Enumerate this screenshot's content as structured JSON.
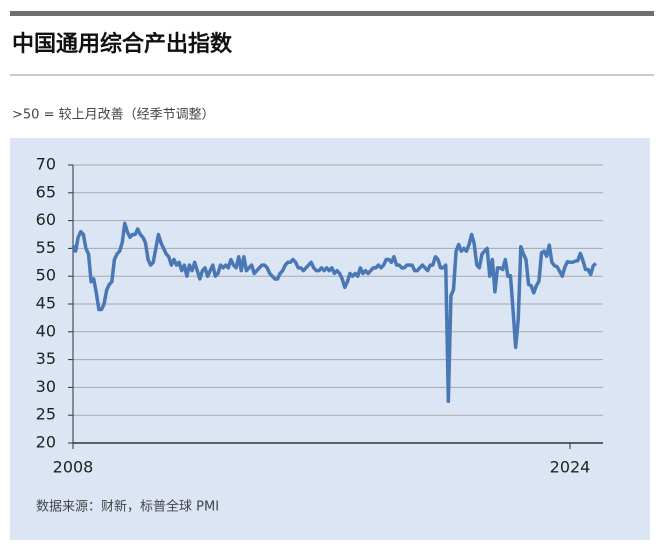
{
  "chart_data": {
    "type": "line",
    "title": "中国通用综合产出指数",
    "subtitle": ">50 = 较上月改善（经季节调整）",
    "source": "数据来源：财新，标普全球 PMI",
    "color": "#4a78b5",
    "ylim": [
      20,
      70
    ],
    "yticks": [
      20,
      25,
      30,
      35,
      40,
      45,
      50,
      55,
      60,
      65,
      70
    ],
    "grid": true,
    "categories": [
      "2008",
      null,
      null,
      null,
      null,
      null,
      null,
      null,
      null,
      null,
      null,
      null,
      null,
      null,
      null,
      null,
      null,
      null,
      null,
      null,
      null,
      null,
      null,
      null,
      null,
      null,
      null,
      null,
      null,
      null,
      null,
      null,
      null,
      null,
      null,
      null,
      null,
      null,
      null,
      null,
      null,
      null,
      null,
      null,
      null,
      null,
      null,
      null,
      null,
      null,
      null,
      null,
      null,
      null,
      null,
      null,
      null,
      null,
      null,
      null,
      null,
      null,
      null,
      null,
      null,
      null,
      null,
      null,
      null,
      null,
      null,
      null,
      null,
      null,
      null,
      null,
      null,
      null,
      null,
      null,
      null,
      null,
      null,
      null,
      null,
      null,
      null,
      null,
      null,
      null,
      null,
      null,
      null,
      null,
      null,
      null,
      null,
      null,
      null,
      null,
      null,
      null,
      null,
      null,
      null,
      null,
      null,
      null,
      null,
      null,
      null,
      null,
      null,
      null,
      null,
      null,
      null,
      null,
      null,
      null,
      null,
      null,
      null,
      null,
      null,
      null,
      null,
      null,
      null,
      null,
      null,
      null,
      null,
      null,
      null,
      null,
      null,
      null,
      null,
      null,
      null,
      null,
      null,
      null,
      null,
      null,
      null,
      null,
      null,
      null,
      null,
      null,
      null,
      null,
      null,
      null,
      null,
      null,
      null,
      null,
      null,
      null,
      null,
      null,
      null,
      null,
      null,
      null,
      null,
      null,
      null,
      null,
      null,
      null,
      null,
      null,
      null,
      null,
      null,
      null,
      null,
      null,
      null,
      null,
      null,
      null,
      null,
      null,
      null,
      null,
      null,
      null,
      "2024",
      null,
      null,
      null,
      null,
      null,
      null,
      null,
      null,
      null,
      null
    ],
    "values": [
      55.5,
      54.5,
      57,
      58,
      57.5,
      55,
      54,
      49,
      49.5,
      47,
      44,
      44,
      45,
      47.5,
      48.5,
      49,
      53,
      54,
      54.5,
      56,
      59.5,
      58,
      57,
      57.5,
      57.5,
      58.5,
      57.5,
      57,
      56,
      53,
      52,
      52.5,
      55,
      57.5,
      56,
      55,
      54,
      53.5,
      52,
      53,
      52,
      52.5,
      51,
      52,
      50,
      52,
      51,
      52.5,
      51,
      49.5,
      51,
      51.5,
      50,
      51,
      52,
      50,
      50.5,
      52,
      51.5,
      52,
      51.5,
      53,
      52,
      51.5,
      53.5,
      51,
      53.5,
      51,
      51.5,
      52,
      50.5,
      51,
      51.5,
      52,
      52,
      51.5,
      50.5,
      50,
      49.5,
      49.5,
      50.5,
      51,
      52,
      52.5,
      52.5,
      53,
      52.5,
      51.5,
      51.5,
      51,
      51.5,
      52,
      52.5,
      51.5,
      51,
      51,
      51.5,
      51,
      51.5,
      51,
      51.5,
      50.5,
      51,
      50.5,
      49.5,
      48,
      49,
      50.5,
      50,
      50.5,
      50,
      51.5,
      50.5,
      51,
      50.5,
      51,
      51.5,
      51.5,
      52,
      51.5,
      52,
      53,
      53,
      52.5,
      53.5,
      52,
      52,
      51.5,
      51.5,
      52,
      52,
      52,
      51,
      51,
      51.5,
      52,
      51.5,
      51,
      52,
      52,
      53.5,
      53,
      51.5,
      51.5,
      52,
      27.5,
      46.5,
      47.6,
      54.5,
      55.7,
      54.5,
      55,
      54.5,
      55.7,
      57.5,
      55.8,
      52,
      51.5,
      54,
      54.5,
      55,
      50,
      53,
      47.2,
      51.5,
      51.5,
      51.2,
      53,
      50,
      50.1,
      43.9,
      37.2,
      42.2,
      55.3,
      54,
      53,
      48.5,
      48.3,
      47,
      48.3,
      49.1,
      54.2,
      54.5,
      53.6,
      55.6,
      52.5,
      51.9,
      51.7,
      50.9,
      50,
      51.6,
      52.6,
      52.5,
      52.5,
      52.7,
      52.8,
      54.1,
      52.8,
      51.2,
      51.2,
      50.3,
      51.9,
      52.3
    ]
  }
}
